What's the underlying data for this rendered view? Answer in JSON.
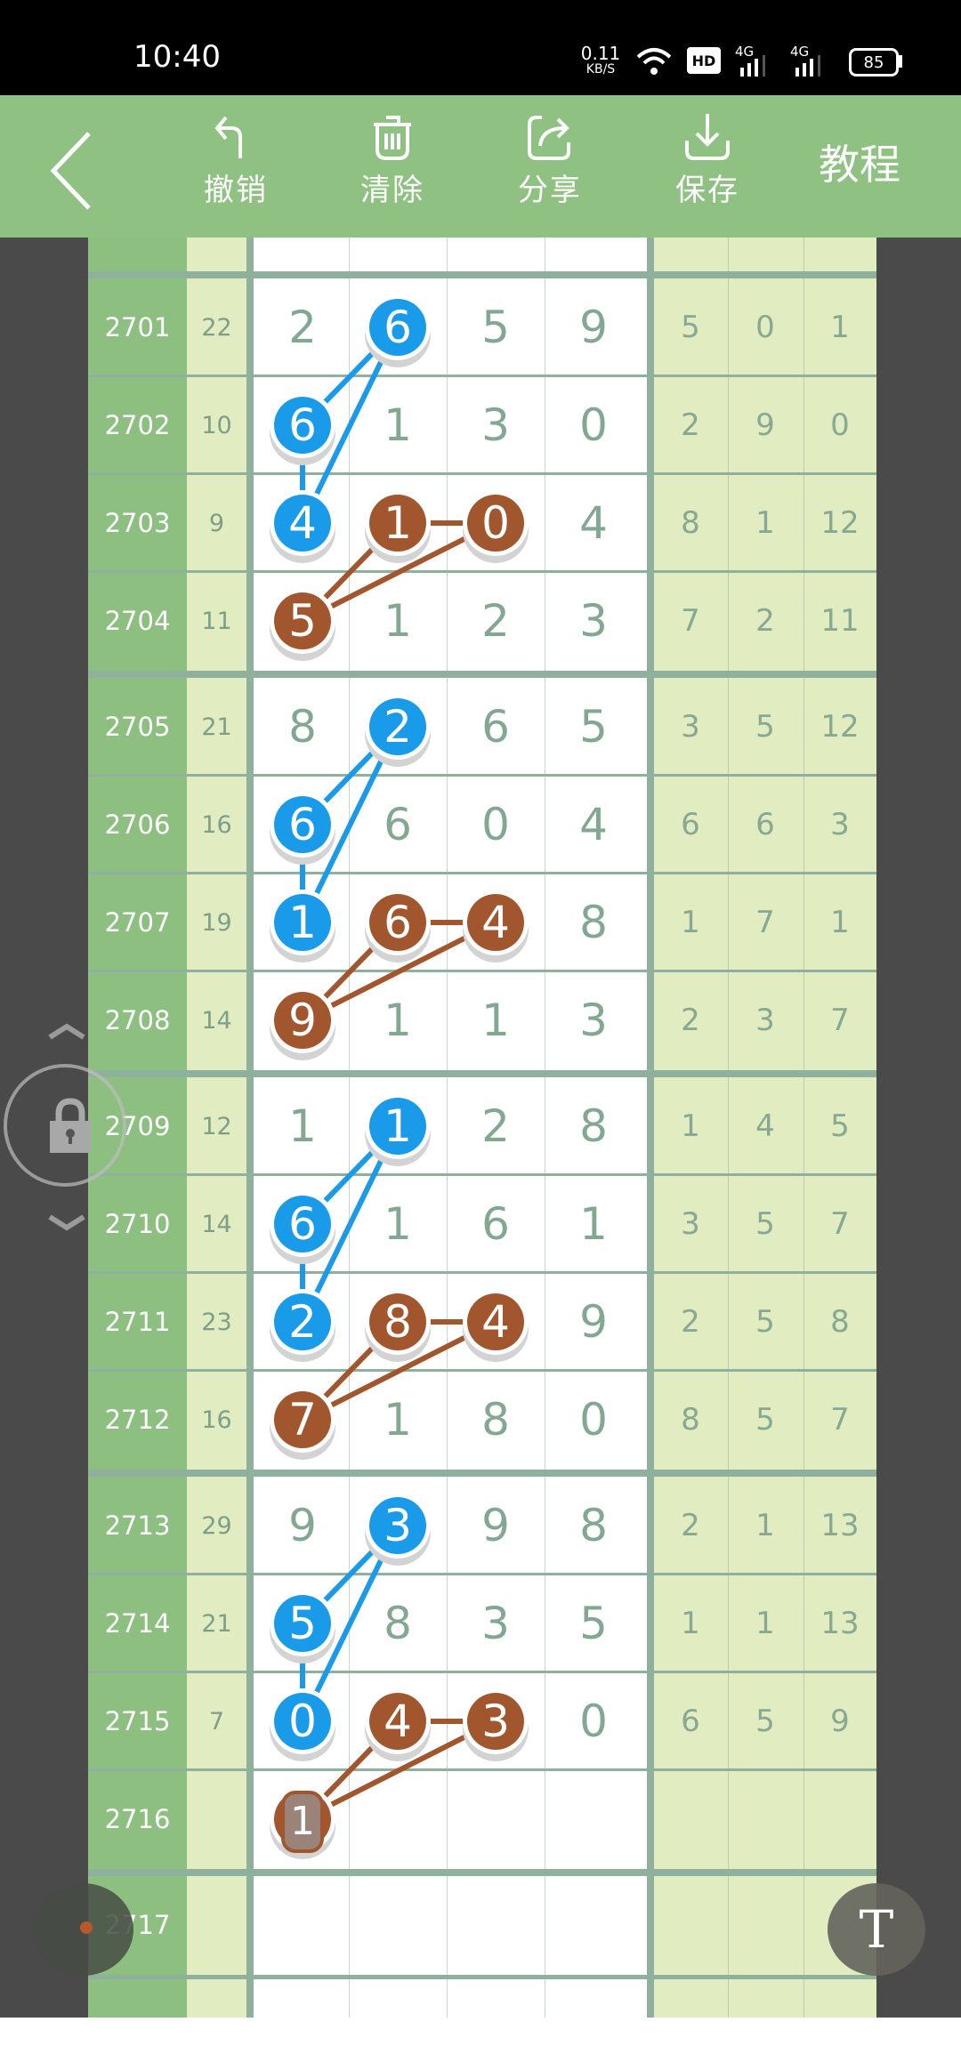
{
  "status_bar": {
    "time": "10:40",
    "net_speed": "0.11",
    "net_unit": "KB/S",
    "hd_badge": "HD",
    "signal1": "4G",
    "signal2": "4G",
    "battery": "85"
  },
  "toolbar": {
    "back_icon": "chevron-left-icon",
    "buttons": [
      {
        "label": "撤销",
        "icon": "undo-icon"
      },
      {
        "label": "清除",
        "icon": "trash-icon"
      },
      {
        "label": "分享",
        "icon": "share-icon"
      },
      {
        "label": "保存",
        "icon": "download-icon"
      }
    ],
    "title": "教程"
  },
  "colors": {
    "header": "#8ec182",
    "period_col": "#8dbf80",
    "side_col": "#e1ecc1",
    "grid_line": "#8fb09c",
    "blue_ball": "#1a9be9",
    "brown_ball": "#a2562d",
    "side_bg": "#4a4a4a"
  },
  "rows": [
    {
      "period": "2701",
      "sum": "22",
      "digits": [
        "2",
        "6",
        "5",
        "9"
      ],
      "stats": [
        "5",
        "0",
        "1"
      ]
    },
    {
      "period": "2702",
      "sum": "10",
      "digits": [
        "6",
        "1",
        "3",
        "0"
      ],
      "stats": [
        "2",
        "9",
        "0"
      ]
    },
    {
      "period": "2703",
      "sum": "9",
      "digits": [
        "4",
        "1",
        "0",
        "4"
      ],
      "stats": [
        "8",
        "1",
        "12"
      ]
    },
    {
      "period": "2704",
      "sum": "11",
      "digits": [
        "5",
        "1",
        "2",
        "3"
      ],
      "stats": [
        "7",
        "2",
        "11"
      ]
    },
    {
      "period": "2705",
      "sum": "21",
      "digits": [
        "8",
        "2",
        "6",
        "5"
      ],
      "stats": [
        "3",
        "5",
        "12"
      ]
    },
    {
      "period": "2706",
      "sum": "16",
      "digits": [
        "6",
        "6",
        "0",
        "4"
      ],
      "stats": [
        "6",
        "6",
        "3"
      ]
    },
    {
      "period": "2707",
      "sum": "19",
      "digits": [
        "1",
        "6",
        "4",
        "8"
      ],
      "stats": [
        "1",
        "7",
        "1"
      ]
    },
    {
      "period": "2708",
      "sum": "14",
      "digits": [
        "9",
        "1",
        "1",
        "3"
      ],
      "stats": [
        "2",
        "3",
        "7"
      ]
    },
    {
      "period": "2709",
      "sum": "12",
      "digits": [
        "1",
        "1",
        "2",
        "8"
      ],
      "stats": [
        "1",
        "4",
        "5"
      ]
    },
    {
      "period": "2710",
      "sum": "14",
      "digits": [
        "6",
        "1",
        "6",
        "1"
      ],
      "stats": [
        "3",
        "5",
        "7"
      ]
    },
    {
      "period": "2711",
      "sum": "23",
      "digits": [
        "2",
        "8",
        "4",
        "9"
      ],
      "stats": [
        "2",
        "5",
        "8"
      ]
    },
    {
      "period": "2712",
      "sum": "16",
      "digits": [
        "7",
        "1",
        "8",
        "0"
      ],
      "stats": [
        "8",
        "5",
        "7"
      ]
    },
    {
      "period": "2713",
      "sum": "29",
      "digits": [
        "9",
        "3",
        "9",
        "8"
      ],
      "stats": [
        "2",
        "1",
        "13"
      ]
    },
    {
      "period": "2714",
      "sum": "21",
      "digits": [
        "5",
        "8",
        "3",
        "5"
      ],
      "stats": [
        "1",
        "1",
        "13"
      ]
    },
    {
      "period": "2715",
      "sum": "7",
      "digits": [
        "0",
        "4",
        "3",
        "0"
      ],
      "stats": [
        "6",
        "5",
        "9"
      ]
    },
    {
      "period": "2716",
      "sum": "",
      "digits": [
        "1",
        "",
        "",
        ""
      ],
      "stats": [
        "",
        "",
        ""
      ]
    },
    {
      "period": "2717",
      "sum": "",
      "digits": [
        "",
        "",
        "",
        ""
      ],
      "stats": [
        "",
        "",
        ""
      ]
    }
  ],
  "group_marks": {
    "balls": [
      {
        "row": 0,
        "col": 1,
        "color": "blue"
      },
      {
        "row": 1,
        "col": 0,
        "color": "blue"
      },
      {
        "row": 2,
        "col": 0,
        "color": "blue"
      },
      {
        "row": 2,
        "col": 1,
        "color": "brown"
      },
      {
        "row": 2,
        "col": 2,
        "color": "brown"
      },
      {
        "row": 3,
        "col": 0,
        "color": "brown"
      }
    ],
    "lines": [
      {
        "from": [
          0,
          1
        ],
        "to": [
          1,
          0
        ],
        "color": "blue"
      },
      {
        "from": [
          0,
          1
        ],
        "to": [
          2,
          0
        ],
        "color": "blue"
      },
      {
        "from": [
          1,
          0
        ],
        "to": [
          2,
          0
        ],
        "color": "blue"
      },
      {
        "from": [
          2,
          1
        ],
        "to": [
          2,
          2
        ],
        "color": "brown"
      },
      {
        "from": [
          3,
          0
        ],
        "to": [
          2,
          1
        ],
        "color": "brown"
      },
      {
        "from": [
          3,
          0
        ],
        "to": [
          2,
          2
        ],
        "color": "brown"
      }
    ]
  },
  "selected_cell": {
    "period": "2716",
    "col": 0
  },
  "floating": {
    "lock_icon": "lock-icon",
    "up_icon": "chevron-up-icon",
    "down_icon": "chevron-down-icon",
    "text_tool": "T"
  }
}
